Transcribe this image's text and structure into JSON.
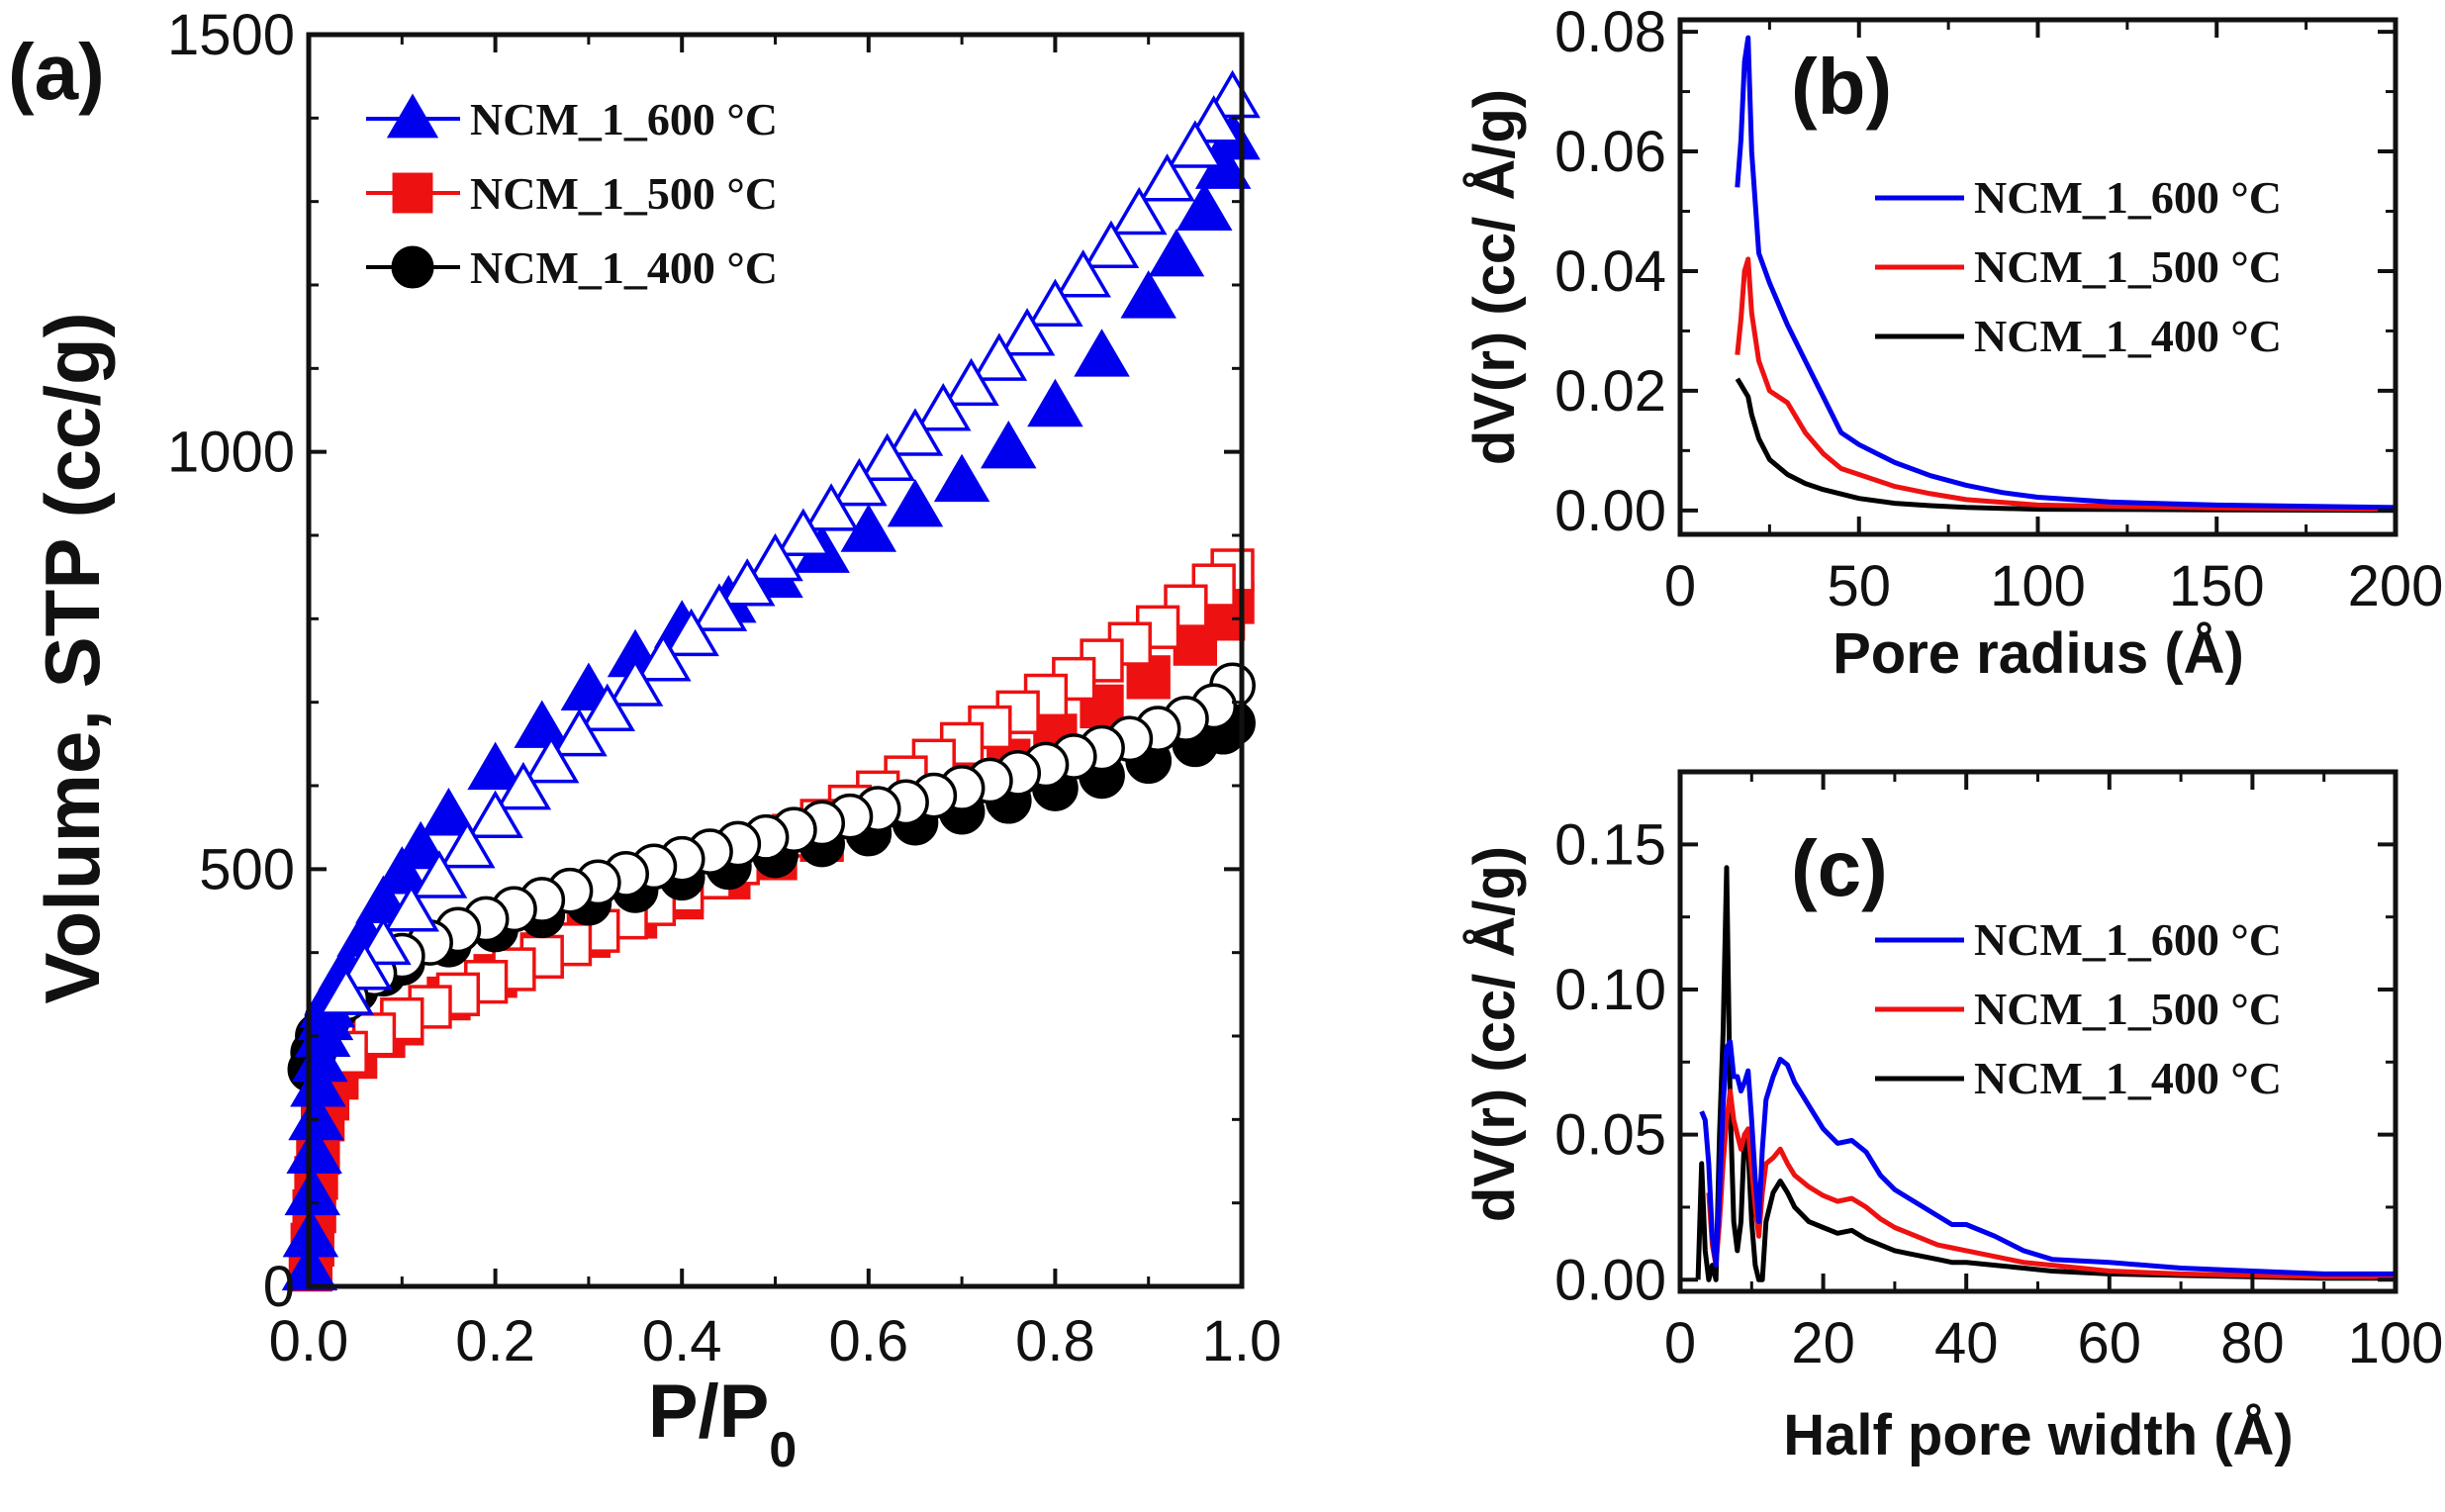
{
  "chart_data": [
    {
      "id": "a",
      "type": "scatter",
      "panel_label": "(a)",
      "xlabel": "P/P",
      "xlabel_sub": "0",
      "ylabel": "Volume, STP (cc/g)",
      "xlim": [
        0.0,
        1.0
      ],
      "ylim": [
        0,
        1500
      ],
      "xticks": [
        "0.0",
        "0.2",
        "0.4",
        "0.6",
        "0.8",
        "1.0"
      ],
      "yticks": [
        "0",
        "500",
        "1000",
        "1500"
      ],
      "legend_position": "top-left",
      "series": [
        {
          "name": "NCM_1_600 °C",
          "color": "#0000ee",
          "marker": "triangle",
          "adsorption": {
            "x": [
              0.001,
              0.002,
              0.004,
              0.006,
              0.008,
              0.01,
              0.012,
              0.015,
              0.018,
              0.02,
              0.025,
              0.03,
              0.04,
              0.06,
              0.08,
              0.1,
              0.12,
              0.15,
              0.2,
              0.25,
              0.3,
              0.35,
              0.4,
              0.45,
              0.5,
              0.55,
              0.6,
              0.65,
              0.7,
              0.75,
              0.8,
              0.85,
              0.9,
              0.93,
              0.96,
              0.98,
              0.99
            ],
            "y": [
              20,
              60,
              110,
              160,
              200,
              240,
              270,
              300,
              320,
              335,
              350,
              360,
              380,
              420,
              460,
              495,
              525,
              565,
              620,
              670,
              715,
              755,
              790,
              820,
              850,
              880,
              905,
              935,
              965,
              1005,
              1055,
              1115,
              1185,
              1235,
              1290,
              1340,
              1375
            ]
          },
          "desorption": {
            "x": [
              0.99,
              0.97,
              0.95,
              0.92,
              0.89,
              0.86,
              0.83,
              0.8,
              0.77,
              0.74,
              0.71,
              0.68,
              0.65,
              0.62,
              0.59,
              0.56,
              0.53,
              0.5,
              0.47,
              0.44,
              0.41,
              0.38,
              0.35,
              0.32,
              0.29,
              0.26,
              0.23,
              0.2,
              0.17,
              0.14,
              0.11,
              0.08,
              0.06,
              0.04
            ],
            "y": [
              1425,
              1395,
              1365,
              1325,
              1285,
              1245,
              1210,
              1175,
              1140,
              1110,
              1080,
              1050,
              1020,
              990,
              960,
              930,
              900,
              870,
              840,
              810,
              780,
              750,
              720,
              690,
              660,
              628,
              596,
              562,
              526,
              490,
              450,
              410,
              380,
              350
            ]
          }
        },
        {
          "name": "NCM_1_500 °C",
          "color": "#ee1111",
          "marker": "square",
          "adsorption": {
            "x": [
              0.002,
              0.004,
              0.006,
              0.008,
              0.01,
              0.015,
              0.02,
              0.03,
              0.05,
              0.08,
              0.1,
              0.15,
              0.2,
              0.25,
              0.3,
              0.35,
              0.4,
              0.45,
              0.5,
              0.55,
              0.6,
              0.65,
              0.7,
              0.75,
              0.8,
              0.85,
              0.9,
              0.95,
              0.98,
              0.99
            ],
            "y": [
              20,
              50,
              90,
              130,
              160,
              200,
              225,
              250,
              275,
              300,
              315,
              345,
              372,
              398,
              420,
              443,
              466,
              490,
              513,
              535,
              558,
              580,
              605,
              630,
              660,
              695,
              730,
              770,
              800,
              820
            ]
          },
          "desorption": {
            "x": [
              0.99,
              0.97,
              0.94,
              0.91,
              0.88,
              0.85,
              0.82,
              0.79,
              0.76,
              0.73,
              0.7,
              0.67,
              0.64,
              0.61,
              0.58,
              0.55,
              0.52,
              0.49,
              0.46,
              0.43,
              0.4,
              0.37,
              0.34,
              0.31,
              0.28,
              0.25,
              0.22,
              0.19,
              0.16,
              0.13,
              0.1,
              0.07,
              0.04
            ],
            "y": [
              858,
              840,
              815,
              790,
              770,
              750,
              728,
              708,
              688,
              670,
              650,
              630,
              610,
              592,
              575,
              558,
              540,
              523,
              507,
              490,
              474,
              458,
              442,
              426,
              410,
              395,
              380,
              365,
              350,
              335,
              320,
              302,
              280
            ]
          }
        },
        {
          "name": "NCM_1_400 °C",
          "color": "#000000",
          "marker": "circle",
          "adsorption": {
            "x": [
              0.002,
              0.005,
              0.01,
              0.02,
              0.03,
              0.05,
              0.08,
              0.1,
              0.15,
              0.2,
              0.25,
              0.3,
              0.35,
              0.4,
              0.45,
              0.5,
              0.55,
              0.6,
              0.65,
              0.7,
              0.75,
              0.8,
              0.85,
              0.9,
              0.95,
              0.98,
              0.99
            ],
            "y": [
              260,
              280,
              300,
              320,
              335,
              355,
              375,
              388,
              410,
              428,
              445,
              460,
              475,
              490,
              503,
              517,
              530,
              543,
              556,
              569,
              582,
              597,
              612,
              630,
              650,
              665,
              675
            ]
          },
          "desorption": {
            "x": [
              0.99,
              0.97,
              0.94,
              0.91,
              0.88,
              0.85,
              0.82,
              0.79,
              0.76,
              0.73,
              0.7,
              0.67,
              0.64,
              0.61,
              0.58,
              0.55,
              0.52,
              0.49,
              0.46,
              0.43,
              0.4,
              0.37,
              0.34,
              0.31,
              0.28,
              0.25,
              0.22,
              0.19,
              0.16,
              0.13,
              0.1,
              0.07,
              0.04
            ],
            "y": [
              720,
              695,
              680,
              668,
              656,
              645,
              635,
              625,
              615,
              606,
              597,
              588,
              580,
              572,
              563,
              555,
              547,
              538,
              530,
              521,
              512,
              503,
              494,
              484,
              474,
              463,
              452,
              440,
              427,
              412,
              396,
              375,
              345
            ]
          }
        }
      ]
    },
    {
      "id": "b",
      "type": "line",
      "panel_label": "(b)",
      "xlabel": "Pore radius (Å)",
      "ylabel": "dV(r)  (cc/ Å/g)",
      "xlim": [
        0,
        200
      ],
      "ylim": [
        -0.004,
        0.082
      ],
      "xticks": [
        "0",
        "50",
        "100",
        "150",
        "200"
      ],
      "yticks": [
        "0.00",
        "0.02",
        "0.04",
        "0.06",
        "0.08"
      ],
      "legend_position": "top-right",
      "series": [
        {
          "name": "NCM_1_600 °C",
          "color": "#0000ee",
          "x": [
            16,
            17,
            18,
            19,
            20,
            22,
            25,
            30,
            35,
            40,
            45,
            50,
            55,
            60,
            70,
            80,
            90,
            100,
            120,
            150,
            200
          ],
          "y": [
            0.054,
            0.062,
            0.075,
            0.079,
            0.06,
            0.043,
            0.038,
            0.031,
            0.025,
            0.019,
            0.013,
            0.011,
            0.0095,
            0.008,
            0.0058,
            0.0042,
            0.003,
            0.0022,
            0.0014,
            0.0009,
            0.0005
          ]
        },
        {
          "name": "NCM_1_500 °C",
          "color": "#ee1111",
          "x": [
            16,
            17,
            18,
            19,
            20,
            22,
            25,
            30,
            35,
            40,
            45,
            50,
            60,
            70,
            80,
            100,
            150,
            200
          ],
          "y": [
            0.026,
            0.032,
            0.04,
            0.042,
            0.033,
            0.025,
            0.02,
            0.018,
            0.013,
            0.0095,
            0.007,
            0.006,
            0.004,
            0.0028,
            0.0018,
            0.0009,
            0.0004,
            0.0002
          ]
        },
        {
          "name": "NCM_1_400 °C",
          "color": "#000000",
          "x": [
            16,
            17,
            18,
            19,
            20,
            22,
            25,
            30,
            35,
            40,
            50,
            60,
            70,
            80,
            100,
            150,
            200
          ],
          "y": [
            0.022,
            0.021,
            0.02,
            0.019,
            0.016,
            0.012,
            0.0085,
            0.006,
            0.0045,
            0.0035,
            0.002,
            0.0012,
            0.0008,
            0.0005,
            0.0002,
            0.0001,
            0.0
          ]
        }
      ]
    },
    {
      "id": "c",
      "type": "line",
      "panel_label": "(c)",
      "xlabel": "Half pore width (Å)",
      "ylabel": "dV(r)  (cc/ Å/g)",
      "xlim": [
        0,
        100
      ],
      "ylim": [
        -0.004,
        0.175
      ],
      "xticks": [
        "0",
        "20",
        "40",
        "60",
        "80",
        "100"
      ],
      "yticks": [
        "0.00",
        "0.05",
        "0.10",
        "0.15"
      ],
      "legend_position": "top-right",
      "series": [
        {
          "name": "NCM_1_600 °C",
          "color": "#0000ee",
          "x": [
            3,
            3.5,
            4,
            4.5,
            5,
            5.5,
            6,
            6.5,
            7,
            7.5,
            8,
            8.5,
            9,
            9.5,
            10,
            10.5,
            11,
            11.5,
            12,
            13,
            14,
            15,
            16,
            18,
            20,
            22,
            24,
            26,
            28,
            30,
            32,
            34,
            36,
            38,
            40,
            44,
            48,
            52,
            60,
            70,
            80,
            90,
            100
          ],
          "y": [
            0.058,
            0.055,
            0.04,
            0.015,
            0.005,
            0.03,
            0.06,
            0.08,
            0.082,
            0.07,
            0.07,
            0.065,
            0.068,
            0.072,
            0.055,
            0.035,
            0.02,
            0.045,
            0.062,
            0.07,
            0.076,
            0.074,
            0.068,
            0.06,
            0.052,
            0.047,
            0.048,
            0.044,
            0.036,
            0.031,
            0.028,
            0.025,
            0.022,
            0.019,
            0.019,
            0.015,
            0.01,
            0.007,
            0.006,
            0.004,
            0.003,
            0.002,
            0.002
          ]
        },
        {
          "name": "NCM_1_500 °C",
          "color": "#ee1111",
          "x": [
            4,
            4.5,
            5,
            5.5,
            6,
            6.5,
            7,
            7.5,
            8,
            8.5,
            9,
            9.5,
            10,
            10.5,
            11,
            11.5,
            12,
            13,
            14,
            15,
            16,
            18,
            20,
            22,
            24,
            26,
            28,
            30,
            32,
            34,
            36,
            38,
            40,
            44,
            48,
            52,
            60,
            70,
            80,
            90,
            100
          ],
          "y": [
            0.03,
            0.012,
            0.005,
            0.02,
            0.04,
            0.055,
            0.065,
            0.055,
            0.05,
            0.045,
            0.05,
            0.052,
            0.038,
            0.025,
            0.015,
            0.03,
            0.04,
            0.042,
            0.045,
            0.04,
            0.036,
            0.032,
            0.029,
            0.027,
            0.028,
            0.025,
            0.021,
            0.018,
            0.016,
            0.014,
            0.012,
            0.011,
            0.01,
            0.008,
            0.006,
            0.005,
            0.003,
            0.002,
            0.0015,
            0.001,
            0.001
          ]
        },
        {
          "name": "NCM_1_400 °C",
          "color": "#000000",
          "x": [
            2.5,
            3,
            3.5,
            4,
            4.5,
            5,
            5.5,
            6,
            6.5,
            7,
            7.5,
            8,
            8.5,
            9,
            9.5,
            10,
            10.5,
            11,
            11.5,
            12,
            13,
            14,
            15,
            16,
            18,
            20,
            22,
            24,
            26,
            28,
            30,
            32,
            34,
            36,
            38,
            40,
            44,
            48,
            52,
            60,
            70,
            80,
            90,
            100
          ],
          "y": [
            0.0,
            0.04,
            0.01,
            0.0,
            0.005,
            0.0,
            0.05,
            0.085,
            0.142,
            0.06,
            0.02,
            0.01,
            0.02,
            0.05,
            0.045,
            0.02,
            0.005,
            0.0,
            0.0,
            0.02,
            0.03,
            0.034,
            0.03,
            0.025,
            0.02,
            0.018,
            0.016,
            0.017,
            0.014,
            0.012,
            0.01,
            0.009,
            0.008,
            0.007,
            0.006,
            0.006,
            0.005,
            0.004,
            0.003,
            0.002,
            0.0015,
            0.001,
            0.0005,
            0.0005
          ]
        }
      ]
    }
  ]
}
